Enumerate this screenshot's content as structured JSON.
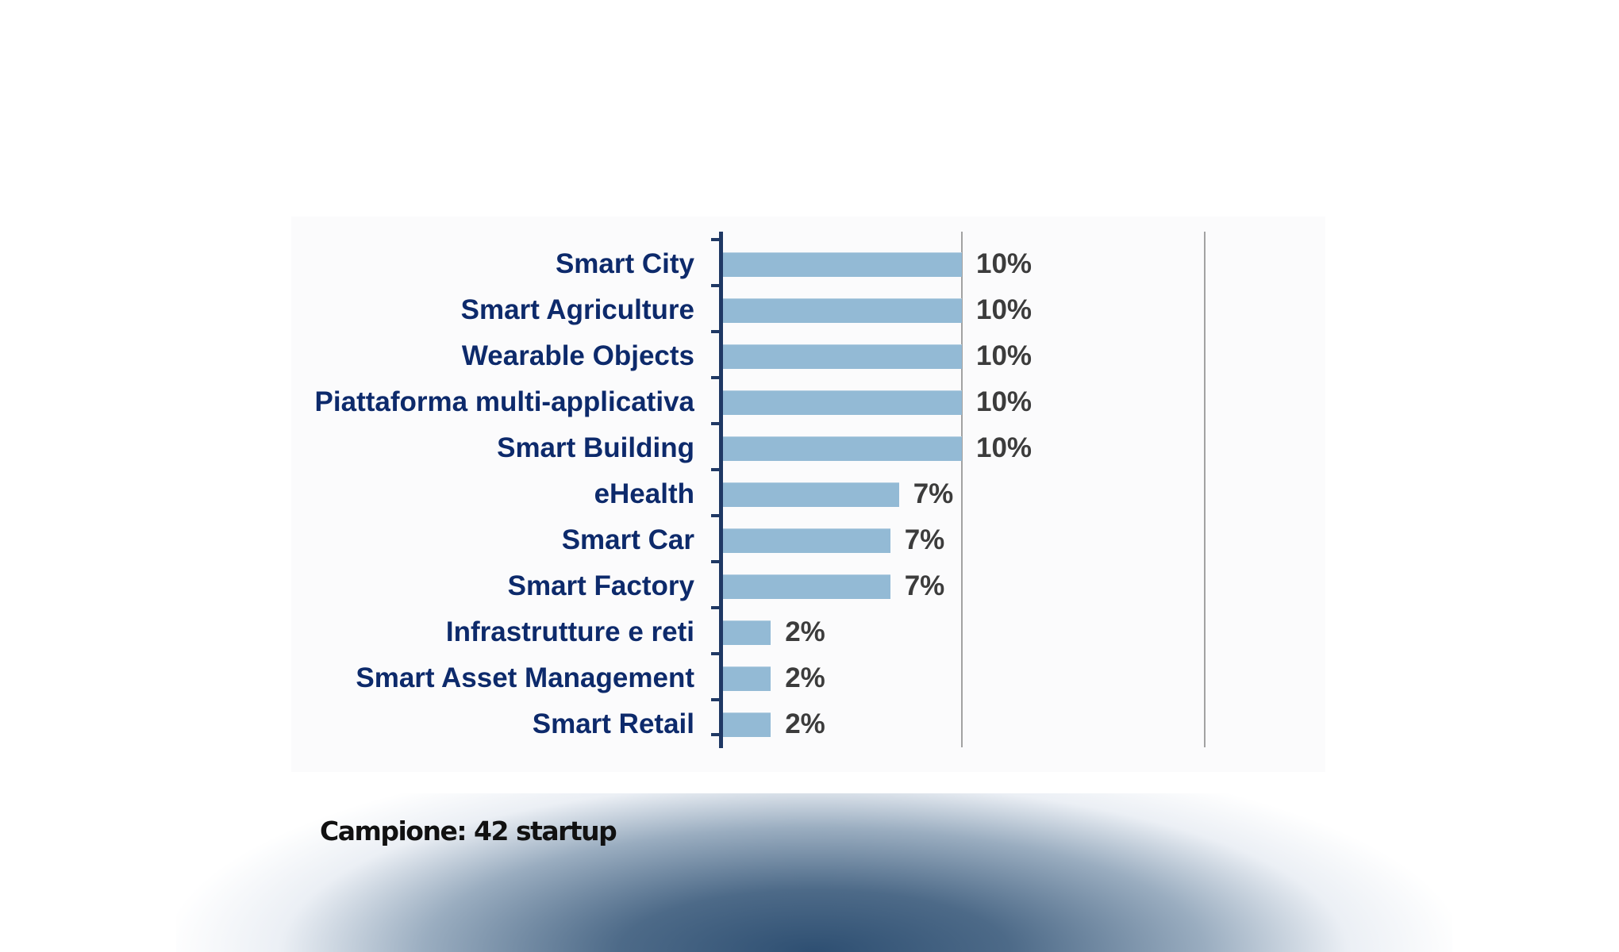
{
  "chart_data": {
    "type": "bar",
    "orientation": "horizontal",
    "title": "",
    "xlabel": "",
    "ylabel": "",
    "categories": [
      "Smart City",
      "Smart Agriculture",
      "Wearable Objects",
      "Piattaforma multi-applicativa",
      "Smart Building",
      "eHealth",
      "Smart Car",
      "Smart Factory",
      "Infrastrutture e reti",
      "Smart Asset Management",
      "Smart Retail"
    ],
    "values": [
      10,
      10,
      10,
      10,
      10,
      7,
      7,
      7,
      2,
      2,
      2
    ],
    "value_labels": [
      "10%",
      "10%",
      "10%",
      "10%",
      "10%",
      "7%",
      "7%",
      "7%",
      "2%",
      "2%",
      "2%"
    ],
    "unit": "%",
    "xlim": [
      0,
      20
    ],
    "gridlines_at": [
      10,
      20
    ],
    "grid": true,
    "legend": null,
    "bar_color": "#93bad5"
  },
  "footnote": "Campione: 42 startup",
  "colors": {
    "label": "#0d2a6b",
    "value": "#3c3c3c",
    "axis": "#1f3864",
    "bar": "#93bad5",
    "gridline": "#a2a2a2",
    "bottom_glow": "#2e4f72"
  }
}
